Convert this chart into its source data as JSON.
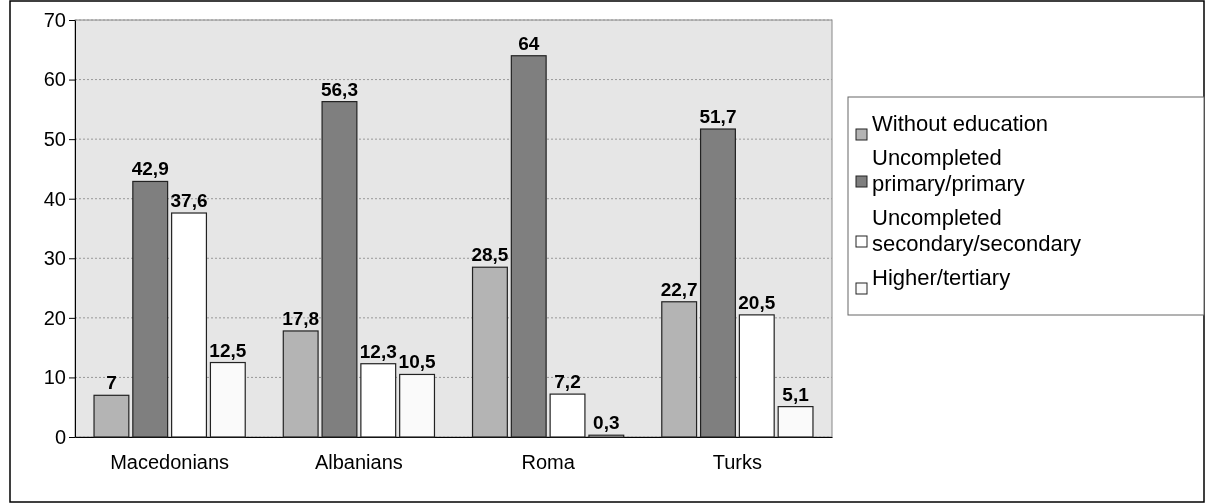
{
  "chart_data": {
    "type": "bar",
    "categories": [
      "Macedonians",
      "Albanians",
      "Roma",
      "Turks"
    ],
    "series": [
      {
        "name": "Without education",
        "color": "#b4b4b4",
        "values": [
          7,
          17.8,
          28.5,
          22.7
        ],
        "value_labels": [
          "7",
          "17,8",
          "28,5",
          "22,7"
        ]
      },
      {
        "name": "Uncompleted primary/primary",
        "color": "#7f7f7f",
        "values": [
          42.9,
          56.3,
          64,
          51.7
        ],
        "value_labels": [
          "42,9",
          "56,3",
          "64",
          "51,7"
        ]
      },
      {
        "name": "Uncompleted secondary/secondary",
        "color": "#ffffff",
        "values": [
          37.6,
          12.3,
          7.2,
          20.5
        ],
        "value_labels": [
          "37,6",
          "12,3",
          "7,2",
          "20,5"
        ]
      },
      {
        "name": "Higher/tertiary",
        "color": "#fafafa",
        "values": [
          12.5,
          10.5,
          0.3,
          5.1
        ],
        "value_labels": [
          "12,5",
          "10,5",
          "0,3",
          "5,1"
        ]
      }
    ],
    "ylim": [
      0,
      70
    ],
    "yticks": [
      0,
      10,
      20,
      30,
      40,
      50,
      60,
      70
    ],
    "grid": "y",
    "legend": "right"
  }
}
